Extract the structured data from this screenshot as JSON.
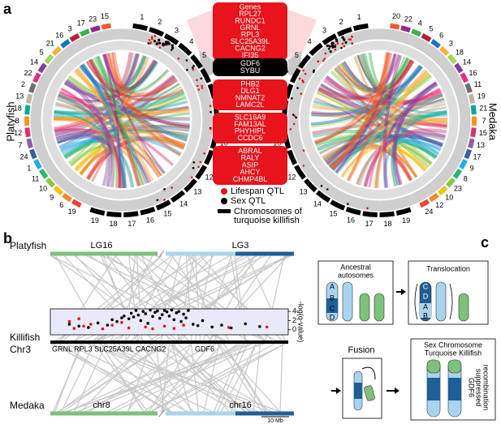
{
  "panel_a": {
    "label": "a",
    "left_species": "Platyfish",
    "right_species": "Medaka",
    "genes_header": "Genes",
    "gene_groups": [
      [
        "RPL27",
        "RUNDC1",
        "GRNL",
        "RPL3",
        "SLC25A39L",
        "CACNG2",
        "IFI35"
      ],
      [
        "GDF6",
        "SYBU"
      ],
      [
        "PHB2",
        "DLG1",
        "NMNAT2",
        "LAMC2L"
      ],
      [
        "SLC16A9",
        "FAM13AL",
        "PHYHIPL",
        "CCDC6"
      ],
      [
        "ABRAL",
        "RALY",
        "ASIP",
        "AHCY",
        "CHMP4BL"
      ]
    ],
    "legend_chromosomes": [
      "Chromosomes of",
      "turquoise killifish"
    ],
    "left_circle": {
      "killifish_chromosomes": [
        1,
        2,
        3,
        4,
        5,
        6,
        7,
        8,
        9,
        10,
        11,
        12,
        13,
        14,
        15,
        16,
        17,
        18,
        19
      ],
      "species_chromosomes": [
        19,
        6,
        9,
        10,
        11,
        1,
        24,
        7,
        12,
        8,
        18,
        13,
        2,
        22,
        14,
        5,
        21,
        16,
        3,
        17,
        23,
        15
      ]
    },
    "right_circle": {
      "killifish_chromosomes": [
        1,
        2,
        3,
        4,
        5,
        6,
        7,
        8,
        9,
        10,
        11,
        12,
        13,
        14,
        15,
        16,
        17,
        18,
        19
      ],
      "species_chromosomes": [
        24,
        12,
        10,
        23,
        8,
        9,
        17,
        13,
        15,
        7,
        21,
        19,
        11,
        16,
        14,
        18,
        3,
        6,
        5,
        4,
        22,
        20
      ]
    }
  },
  "panel_b": {
    "label": "b",
    "platyfish": {
      "name": "Platyfish",
      "segments": [
        "LG16",
        "LG3"
      ]
    },
    "killifish": {
      "name_lines": [
        "Killifish",
        "Chr3"
      ],
      "genes_left": "GRNL RPL3 SLC25A39L CACNG2",
      "genes_right": "GDF6"
    },
    "medaka": {
      "name": "Medaka",
      "segments": [
        "chr8",
        "chr16"
      ]
    },
    "scale_bar": "10 Mb"
  },
  "chart_data": {
    "type": "scatter",
    "ylabel": "-log(q-value)",
    "xlim": [
      0,
      100
    ],
    "ylim": [
      -1.1,
      4.55
    ],
    "yticks": [
      0,
      2,
      4
    ],
    "series": [
      {
        "name": "Lifespan QTL",
        "color": "#e8131b",
        "x": [
          8,
          10,
          12,
          14,
          17,
          22,
          26,
          30,
          33,
          40,
          43,
          48,
          52,
          56,
          75,
          91
        ],
        "values": [
          1.8,
          0.3,
          2.4,
          0.8,
          1.2,
          0.2,
          1.0,
          1.6,
          0.4,
          0.6,
          0.2,
          0.8,
          0.3,
          1.0,
          0.5,
          0.6
        ]
      },
      {
        "name": "Sex QTL",
        "color": "#000000",
        "x": [
          8,
          12,
          16,
          20,
          24,
          26,
          28,
          30,
          31,
          33,
          34,
          35,
          36,
          37,
          38,
          39,
          40,
          41,
          42,
          43,
          44,
          45,
          46,
          47,
          48,
          49,
          50,
          51,
          52,
          53,
          54,
          55,
          56,
          57,
          58,
          60,
          62,
          64,
          68,
          72,
          76,
          82,
          88
        ],
        "values": [
          1.2,
          0.8,
          0.5,
          1.5,
          1.0,
          2.2,
          1.8,
          2.6,
          3.0,
          2.4,
          3.6,
          2.8,
          4.2,
          3.2,
          2.0,
          4.0,
          3.5,
          1.4,
          4.3,
          2.9,
          3.8,
          4.1,
          2.5,
          3.3,
          4.2,
          3.9,
          3.0,
          4.3,
          2.2,
          3.7,
          4.0,
          1.8,
          3.4,
          2.6,
          4.2,
          1.2,
          0.9,
          2.0,
          0.6,
          1.0,
          0.4,
          1.3,
          0.7
        ]
      }
    ]
  },
  "panel_c": {
    "label": "c",
    "ancestral_lines": [
      "Ancestral",
      "autosomes"
    ],
    "translocation": "Translocation",
    "fusion": "Fusion",
    "sex_lines": [
      "Sex Chromosome",
      "Turquoise Killifish"
    ],
    "ancestral_letters": [
      "A",
      "B",
      "C",
      "D"
    ],
    "translocation_letters": [
      "C",
      "D",
      "A",
      "B"
    ],
    "gdf6_lines": [
      "GDF6",
      "suppressed",
      "recombination"
    ]
  }
}
